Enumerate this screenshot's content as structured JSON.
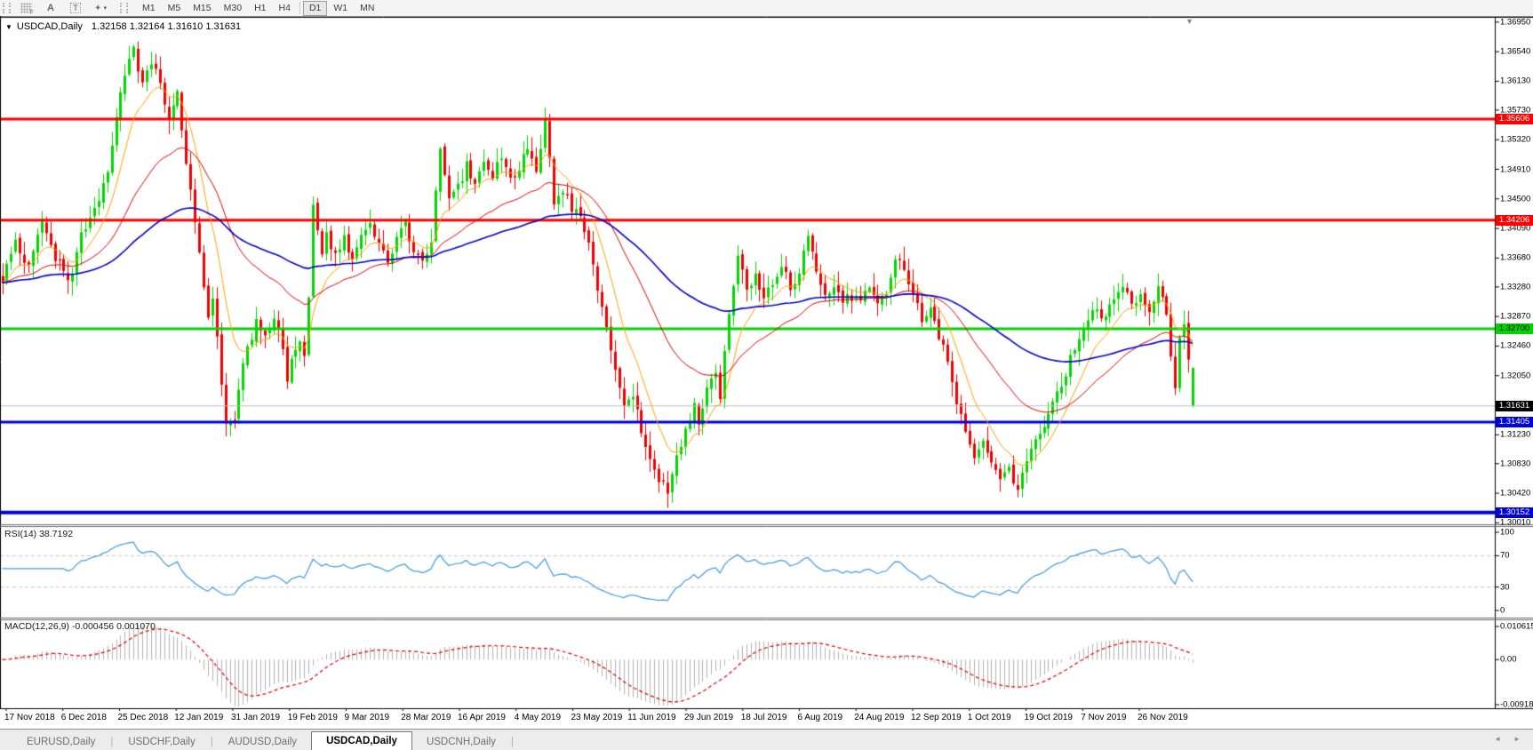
{
  "toolbar": {
    "tools": [
      {
        "name": "chart-grid-tool",
        "glyph": "F"
      },
      {
        "name": "label-tool",
        "glyph": "A"
      },
      {
        "name": "text-tool",
        "glyph": "T"
      },
      {
        "name": "objects-tool",
        "glyph": "✦",
        "caret": "▾"
      }
    ],
    "timeframes": [
      "M1",
      "M5",
      "M15",
      "M30",
      "H1",
      "H4",
      "D1",
      "W1",
      "MN"
    ],
    "active_timeframe": "D1"
  },
  "icons": {
    "title_dropdown": "▼",
    "shift_marker": "▼",
    "tab_scroll_left": "◄",
    "tab_scroll_right": "►"
  },
  "chart": {
    "title": {
      "symbol_period": "USDCAD,Daily",
      "ohlc": "1.32158 1.32164 1.31610 1.31631"
    },
    "price_axis_ticks": [
      "1.36950",
      "1.36540",
      "1.36130",
      "1.35730",
      "1.35320",
      "1.34910",
      "1.34500",
      "1.34090",
      "1.33680",
      "1.33280",
      "1.32870",
      "1.32460",
      "1.32050",
      "1.31230",
      "1.30830",
      "1.30420",
      "1.30010"
    ],
    "levels": [
      {
        "price": 1.35606,
        "label": "1.35606",
        "color": "#fe0000",
        "text": "#ffffff",
        "width": 3
      },
      {
        "price": 1.34206,
        "label": "1.34206",
        "color": "#fe0000",
        "text": "#ffffff",
        "width": 3
      },
      {
        "price": 1.327,
        "label": "1.32700",
        "color": "#00d400",
        "text": "#000000",
        "width": 3
      },
      {
        "price": 1.31405,
        "label": "1.31405",
        "color": "#0000dc",
        "text": "#ffffff",
        "width": 3
      },
      {
        "price": 1.30152,
        "label": "1.30152",
        "color": "#0000dc",
        "text": "#ffffff",
        "width": 4
      }
    ],
    "current_price": {
      "label": "1.31631",
      "price": 1.31631,
      "bg": "#000000",
      "text": "#ffffff"
    },
    "x_axis_dates": [
      "17 Nov 2018",
      "6 Dec 2018",
      "25 Dec 2018",
      "12 Jan 2019",
      "31 Jan 2019",
      "19 Feb 2019",
      "9 Mar 2019",
      "28 Mar 2019",
      "16 Apr 2019",
      "4 May 2019",
      "23 May 2019",
      "11 Jun 2019",
      "29 Jun 2019",
      "18 Jul 2019",
      "6 Aug 2019",
      "24 Aug 2019",
      "12 Sep 2019",
      "1 Oct 2019",
      "19 Oct 2019",
      "7 Nov 2019",
      "26 Nov 2019"
    ]
  },
  "rsi": {
    "label": "RSI(14) 38.7192",
    "value": 38.7192,
    "axis_ticks": [
      {
        "text": "100",
        "value": 100
      },
      {
        "text": "70",
        "value": 70
      },
      {
        "text": "30",
        "value": 30
      },
      {
        "text": "0",
        "value": 0
      }
    ],
    "dashed_levels": [
      70,
      30
    ]
  },
  "macd": {
    "label": "MACD(12,26,9) -0.000456 0.001070",
    "main_value": -0.000456,
    "signal_value": 0.00107,
    "axis_ticks": [
      {
        "text": "0.010615",
        "pos": "max"
      },
      {
        "text": "0.00",
        "pos": "zero"
      },
      {
        "text": "-0.009185",
        "pos": "min"
      }
    ]
  },
  "tabs": {
    "items": [
      "EURUSD,Daily",
      "USDCHF,Daily",
      "AUDUSD,Daily",
      "USDCAD,Daily",
      "USDCNH,Daily"
    ],
    "active": "USDCAD,Daily"
  },
  "colors": {
    "bull": "#00d800",
    "bear": "#f20000",
    "ma_fast": "#ffa200",
    "ma_mid": "#e00000",
    "ma_slow": "#0000c8",
    "rsi_line": "#3f99e0",
    "macd_hist": "#b2b2b2",
    "macd_signal": "#e00000",
    "current_line": "#bcbcbc",
    "dashed_level": "#c6c6c6",
    "border": "#000000"
  },
  "chart_data": {
    "type": "candlestick",
    "symbol": "USDCAD",
    "period": "Daily",
    "bars": 273,
    "price_range_axis": {
      "top": 1.3701,
      "bottom": 1.2999
    },
    "price_anchors": [
      [
        0,
        1.334
      ],
      [
        3,
        1.3395
      ],
      [
        6,
        1.3355
      ],
      [
        9,
        1.342
      ],
      [
        12,
        1.337
      ],
      [
        15,
        1.333
      ],
      [
        18,
        1.3395
      ],
      [
        21,
        1.344
      ],
      [
        24,
        1.348
      ],
      [
        26,
        1.356
      ],
      [
        28,
        1.3625
      ],
      [
        30,
        1.3655
      ],
      [
        32,
        1.3605
      ],
      [
        34,
        1.3645
      ],
      [
        36,
        1.361
      ],
      [
        38,
        1.3555
      ],
      [
        40,
        1.36
      ],
      [
        42,
        1.35
      ],
      [
        44,
        1.342
      ],
      [
        46,
        1.333
      ],
      [
        47,
        1.329
      ],
      [
        48,
        1.332
      ],
      [
        50,
        1.319
      ],
      [
        51,
        1.3145
      ],
      [
        53,
        1.314
      ],
      [
        54,
        1.319
      ],
      [
        56,
        1.3245
      ],
      [
        58,
        1.328
      ],
      [
        60,
        1.3255
      ],
      [
        62,
        1.3285
      ],
      [
        64,
        1.324
      ],
      [
        65,
        1.32
      ],
      [
        66,
        1.323
      ],
      [
        68,
        1.326
      ],
      [
        69,
        1.3235
      ],
      [
        70,
        1.331
      ],
      [
        71,
        1.3445
      ],
      [
        72,
        1.341
      ],
      [
        73,
        1.337
      ],
      [
        74,
        1.34
      ],
      [
        76,
        1.3375
      ],
      [
        78,
        1.339
      ],
      [
        80,
        1.336
      ],
      [
        82,
        1.34
      ],
      [
        84,
        1.342
      ],
      [
        86,
        1.3385
      ],
      [
        88,
        1.3365
      ],
      [
        90,
        1.34
      ],
      [
        92,
        1.3415
      ],
      [
        94,
        1.3375
      ],
      [
        96,
        1.336
      ],
      [
        98,
        1.3395
      ],
      [
        100,
        1.352
      ],
      [
        102,
        1.3445
      ],
      [
        104,
        1.347
      ],
      [
        106,
        1.3495
      ],
      [
        108,
        1.3475
      ],
      [
        110,
        1.35
      ],
      [
        112,
        1.348
      ],
      [
        114,
        1.3505
      ],
      [
        116,
        1.3475
      ],
      [
        118,
        1.3495
      ],
      [
        120,
        1.3515
      ],
      [
        122,
        1.349
      ],
      [
        124,
        1.3555
      ],
      [
        125,
        1.3505
      ],
      [
        126,
        1.3445
      ],
      [
        128,
        1.346
      ],
      [
        130,
        1.344
      ],
      [
        132,
        1.3425
      ],
      [
        134,
        1.338
      ],
      [
        136,
        1.333
      ],
      [
        138,
        1.327
      ],
      [
        140,
        1.321
      ],
      [
        142,
        1.3165
      ],
      [
        144,
        1.3185
      ],
      [
        146,
        1.313
      ],
      [
        148,
        1.309
      ],
      [
        150,
        1.3065
      ],
      [
        152,
        1.3048
      ],
      [
        154,
        1.3088
      ],
      [
        156,
        1.3125
      ],
      [
        158,
        1.316
      ],
      [
        159,
        1.3135
      ],
      [
        161,
        1.319
      ],
      [
        163,
        1.3215
      ],
      [
        164,
        1.3175
      ],
      [
        166,
        1.329
      ],
      [
        168,
        1.3365
      ],
      [
        170,
        1.332
      ],
      [
        172,
        1.3348
      ],
      [
        174,
        1.3312
      ],
      [
        176,
        1.3335
      ],
      [
        178,
        1.3358
      ],
      [
        180,
        1.3328
      ],
      [
        182,
        1.3348
      ],
      [
        184,
        1.34
      ],
      [
        186,
        1.3348
      ],
      [
        188,
        1.3312
      ],
      [
        190,
        1.3325
      ],
      [
        192,
        1.3302
      ],
      [
        194,
        1.3315
      ],
      [
        196,
        1.3318
      ],
      [
        198,
        1.3325
      ],
      [
        200,
        1.3305
      ],
      [
        202,
        1.3325
      ],
      [
        204,
        1.337
      ],
      [
        206,
        1.3358
      ],
      [
        208,
        1.332
      ],
      [
        210,
        1.3282
      ],
      [
        212,
        1.33
      ],
      [
        214,
        1.326
      ],
      [
        216,
        1.322
      ],
      [
        218,
        1.3175
      ],
      [
        220,
        1.313
      ],
      [
        222,
        1.3095
      ],
      [
        224,
        1.311
      ],
      [
        226,
        1.308
      ],
      [
        228,
        1.3058
      ],
      [
        230,
        1.3075
      ],
      [
        232,
        1.3052
      ],
      [
        234,
        1.309
      ],
      [
        236,
        1.3115
      ],
      [
        238,
        1.314
      ],
      [
        240,
        1.3165
      ],
      [
        242,
        1.319
      ],
      [
        244,
        1.3225
      ],
      [
        246,
        1.3255
      ],
      [
        248,
        1.3282
      ],
      [
        250,
        1.33
      ],
      [
        252,
        1.3285
      ],
      [
        254,
        1.331
      ],
      [
        256,
        1.333
      ],
      [
        258,
        1.3305
      ],
      [
        260,
        1.332
      ],
      [
        262,
        1.33
      ],
      [
        264,
        1.333
      ],
      [
        266,
        1.329
      ],
      [
        267,
        1.324
      ],
      [
        268,
        1.319
      ],
      [
        269,
        1.3255
      ],
      [
        270,
        1.327
      ],
      [
        271,
        1.3225
      ],
      [
        272,
        1.31631
      ]
    ],
    "last_candle": {
      "open": 1.32158,
      "high": 1.32164,
      "low": 1.3161,
      "close": 1.31631,
      "display_color": "bull"
    },
    "moving_averages": [
      {
        "name": "fast",
        "period": 10,
        "color_key": "ma_fast"
      },
      {
        "name": "mid",
        "period": 34,
        "color_key": "ma_mid"
      },
      {
        "name": "slow",
        "period": 90,
        "color_key": "ma_slow"
      }
    ],
    "indicators": [
      {
        "type": "RSI",
        "period": 14,
        "last": 38.7192
      },
      {
        "type": "MACD",
        "fast": 12,
        "slow": 26,
        "signal": 9,
        "last_main": -0.000456,
        "last_signal": 0.00107
      }
    ]
  }
}
